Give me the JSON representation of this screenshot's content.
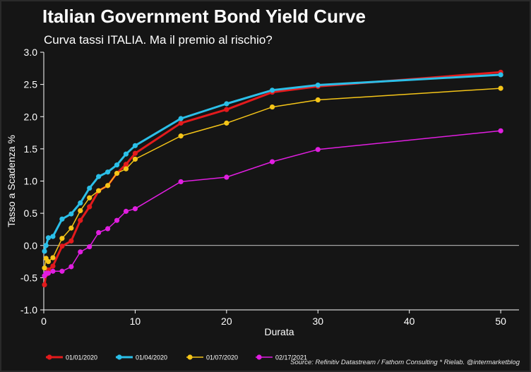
{
  "header": {
    "title": "Italian Government Bond Yield Curve",
    "subtitle": "Curva tassi ITALIA. Ma il premio al rischio?"
  },
  "footer": {
    "source": "Source: Refinitiv Datastream / Fathom Consulting *  Rielab. @intermarketblog"
  },
  "chart_data": {
    "type": "line",
    "title": "Italian Government Bond Yield Curve",
    "subtitle": "Curva tassi ITALIA. Ma il premio al rischio?",
    "xlabel": "Durata",
    "ylabel": "Tasso a Scadenza %",
    "xlim": [
      0,
      52
    ],
    "ylim": [
      -1.0,
      3.0
    ],
    "xticks": [
      0,
      10,
      20,
      30,
      40,
      50
    ],
    "yticks": [
      -1.0,
      -0.5,
      0.0,
      0.5,
      1.0,
      1.5,
      2.0,
      2.5,
      3.0
    ],
    "ytick_labels": [
      "-1.0",
      "-0.5",
      "0.0",
      "0.5",
      "1.0",
      "1.5",
      "2.0",
      "2.5",
      "3.0"
    ],
    "zero_line": true,
    "grid": false,
    "legend_position": "bottom-left",
    "series": [
      {
        "name": "01/01/2020",
        "color": "#e31a1c",
        "x": [
          0.08,
          0.25,
          0.5,
          1,
          2,
          3,
          4,
          5,
          6,
          7,
          8,
          9,
          10,
          15,
          20,
          25,
          30,
          50
        ],
        "y": [
          -0.61,
          -0.45,
          -0.38,
          -0.32,
          -0.01,
          0.07,
          0.39,
          0.6,
          0.85,
          0.93,
          1.12,
          1.26,
          1.43,
          1.9,
          2.11,
          2.38,
          2.47,
          2.69
        ]
      },
      {
        "name": "01/04/2020",
        "color": "#2bbfe8",
        "x": [
          0.08,
          0.25,
          0.5,
          1,
          2,
          3,
          4,
          5,
          6,
          7,
          8,
          9,
          10,
          15,
          20,
          25,
          30,
          50
        ],
        "y": [
          -0.09,
          0.0,
          0.12,
          0.14,
          0.41,
          0.49,
          0.66,
          0.89,
          1.07,
          1.14,
          1.25,
          1.42,
          1.55,
          1.97,
          2.2,
          2.41,
          2.49,
          2.65
        ]
      },
      {
        "name": "01/07/2020",
        "color": "#f5c518",
        "x": [
          0.08,
          0.25,
          0.5,
          1,
          2,
          3,
          4,
          5,
          6,
          7,
          8,
          9,
          10,
          15,
          20,
          25,
          30,
          50
        ],
        "y": [
          -0.35,
          -0.2,
          -0.25,
          -0.19,
          0.11,
          0.27,
          0.54,
          0.74,
          0.85,
          0.93,
          1.12,
          1.19,
          1.34,
          1.7,
          1.9,
          2.15,
          2.26,
          2.44
        ]
      },
      {
        "name": "02/17/2021",
        "color": "#e11ee1",
        "x": [
          0.08,
          0.25,
          0.5,
          1,
          2,
          3,
          4,
          5,
          6,
          7,
          8,
          9,
          10,
          15,
          20,
          25,
          30,
          50
        ],
        "y": [
          -0.47,
          -0.43,
          -0.43,
          -0.4,
          -0.4,
          -0.33,
          -0.1,
          -0.02,
          0.2,
          0.26,
          0.39,
          0.53,
          0.57,
          0.99,
          1.06,
          1.3,
          1.49,
          1.78
        ]
      }
    ]
  }
}
